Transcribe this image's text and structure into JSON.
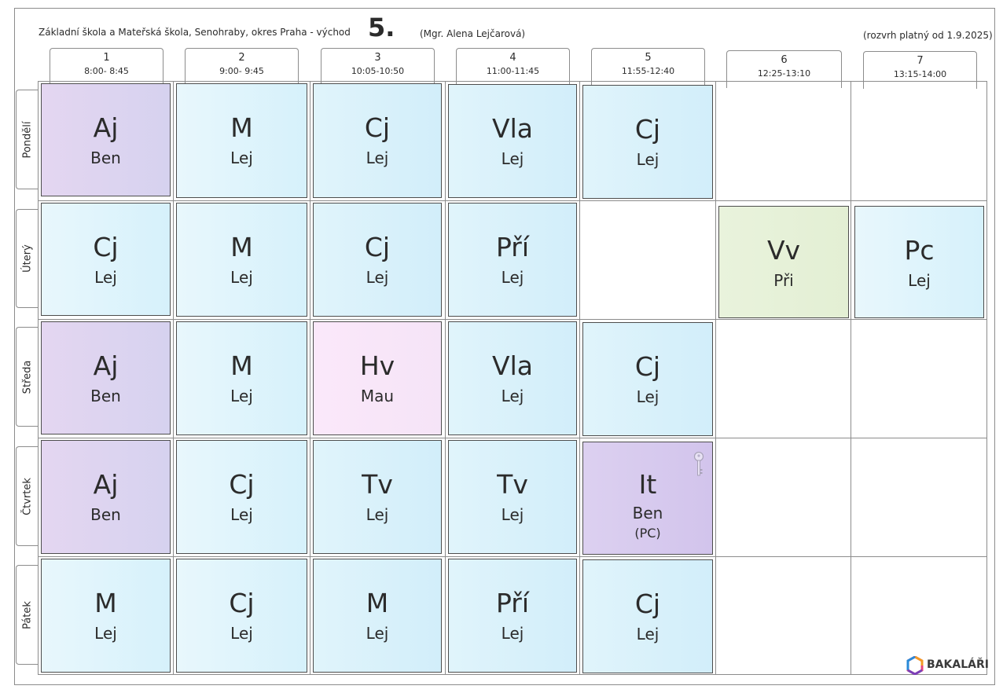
{
  "header": {
    "school": "Základní škola a Mateřská škola, Senohraby, okres Praha - východ",
    "class": "5.",
    "teacher": "(Mgr. Alena Lejčarová)",
    "validity": "(rozvrh platný od 1.9.2025)"
  },
  "periods": [
    {
      "num": "1",
      "time": "8:00- 8:45"
    },
    {
      "num": "2",
      "time": "9:00- 9:45"
    },
    {
      "num": "3",
      "time": "10:05-10:50"
    },
    {
      "num": "4",
      "time": "11:00-11:45"
    },
    {
      "num": "5",
      "time": "11:55-12:40"
    },
    {
      "num": "6",
      "time": "12:25-13:10"
    },
    {
      "num": "7",
      "time": "13:15-14:00"
    }
  ],
  "days": [
    "Pondělí",
    "Úterý",
    "Středa",
    "Čtvrtek",
    "Pátek"
  ],
  "lessons": {
    "mon": [
      {
        "subject": "Aj",
        "teacher": "Ben"
      },
      {
        "subject": "M",
        "teacher": "Lej"
      },
      {
        "subject": "Cj",
        "teacher": "Lej"
      },
      {
        "subject": "Vla",
        "teacher": "Lej"
      },
      {
        "subject": "Cj",
        "teacher": "Lej"
      }
    ],
    "tue": [
      {
        "subject": "Cj",
        "teacher": "Lej"
      },
      {
        "subject": "M",
        "teacher": "Lej"
      },
      {
        "subject": "Cj",
        "teacher": "Lej"
      },
      {
        "subject": "Pří",
        "teacher": "Lej"
      },
      {
        "subject": "Vv",
        "teacher": "Při"
      },
      {
        "subject": "Pc",
        "teacher": "Lej"
      }
    ],
    "wed": [
      {
        "subject": "Aj",
        "teacher": "Ben"
      },
      {
        "subject": "M",
        "teacher": "Lej"
      },
      {
        "subject": "Hv",
        "teacher": "Mau"
      },
      {
        "subject": "Vla",
        "teacher": "Lej"
      },
      {
        "subject": "Cj",
        "teacher": "Lej"
      }
    ],
    "thu": [
      {
        "subject": "Aj",
        "teacher": "Ben"
      },
      {
        "subject": "Cj",
        "teacher": "Lej"
      },
      {
        "subject": "Tv",
        "teacher": "Lej"
      },
      {
        "subject": "Tv",
        "teacher": "Lej"
      },
      {
        "subject": "It",
        "teacher": "Ben",
        "room": "(PC)",
        "icon": "key-icon"
      }
    ],
    "fri": [
      {
        "subject": "M",
        "teacher": "Lej"
      },
      {
        "subject": "Cj",
        "teacher": "Lej"
      },
      {
        "subject": "M",
        "teacher": "Lej"
      },
      {
        "subject": "Pří",
        "teacher": "Lej"
      },
      {
        "subject": "Cj",
        "teacher": "Lej"
      }
    ]
  },
  "colors": {
    "blue": "#d6f0fa",
    "purple": "#ddd3f0",
    "pink": "#f8e6f8",
    "green": "#e6f1d8",
    "border": "#8c8c8c"
  },
  "logo": {
    "text": "BAKALÁŘI",
    "icon": "bakalari-logo-icon"
  }
}
